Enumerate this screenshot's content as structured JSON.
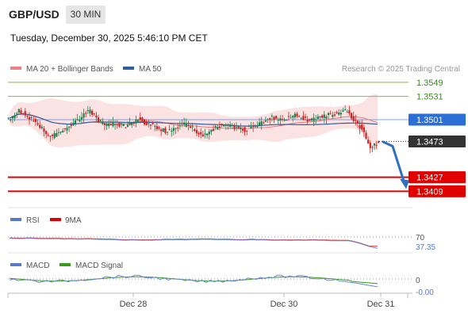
{
  "header": {
    "symbol": "GBP/USD",
    "timeframe": "30 MIN",
    "datetime": "Tuesday, December 30, 2025 5:46:10 PM CET"
  },
  "legend": {
    "ma20": "MA 20 + Bollinger Bands",
    "ma50": "MA 50",
    "credit": "Research © 2025 Trading Central",
    "colors": {
      "ma20": "#f08080",
      "ma50": "#2f5f9f",
      "candle_up": "#1f7f4f",
      "candle_down": "#cc2222"
    }
  },
  "rsi_panel": {
    "label": "RSI",
    "ma_label": "9MA",
    "level": "70",
    "value": "37.35"
  },
  "macd_panel": {
    "label": "MACD",
    "signal_label": "MACD Signal",
    "zero": "0",
    "value": "-0.00"
  },
  "chart_data": {
    "type": "candlestick",
    "timeframe": "30 MIN",
    "x_ticks": [
      "Dec 28",
      "Dec 30",
      "Dec 31"
    ],
    "price_axis": {
      "ylim": [
        1.339,
        1.3555
      ]
    },
    "levels": [
      {
        "label": "1.3549",
        "value": 1.3549,
        "color": "#7cbf3f",
        "kind": "resistance"
      },
      {
        "label": "1.3531",
        "value": 1.3531,
        "color": "#7cbf3f",
        "kind": "resistance"
      },
      {
        "label": "1.3501",
        "value": 1.3501,
        "color": "#2a6fd6",
        "kind": "ma50"
      },
      {
        "label": "1.3473",
        "value": 1.3473,
        "color": "#333333",
        "kind": "last"
      },
      {
        "label": "1.3427",
        "value": 1.3427,
        "color": "#e00000",
        "kind": "target"
      },
      {
        "label": "1.3409",
        "value": 1.3409,
        "color": "#e00000",
        "kind": "target"
      }
    ],
    "forecast": {
      "from": 1.3473,
      "to": 1.3419
    },
    "close_series": [
      1.3503,
      1.3508,
      1.3512,
      1.3511,
      1.3506,
      1.3502,
      1.3497,
      1.3492,
      1.3486,
      1.3481,
      1.3479,
      1.3484,
      1.3487,
      1.349,
      1.3492,
      1.3496,
      1.35,
      1.3505,
      1.351,
      1.3512,
      1.3508,
      1.3501,
      1.3496,
      1.3493,
      1.3495,
      1.3498,
      1.3495,
      1.3493,
      1.3494,
      1.3497,
      1.3501,
      1.3502,
      1.3498,
      1.3495,
      1.3493,
      1.349,
      1.3488,
      1.3487,
      1.3486,
      1.3489,
      1.3492,
      1.3495,
      1.3494,
      1.3491,
      1.3488,
      1.3484,
      1.3482,
      1.3485,
      1.3488,
      1.349,
      1.3493,
      1.3495,
      1.3493,
      1.3492,
      1.349,
      1.3489,
      1.3488,
      1.349,
      1.3493,
      1.3495,
      1.3497,
      1.35,
      1.3503,
      1.3504,
      1.3502,
      1.3501,
      1.3503,
      1.3505,
      1.3506,
      1.3503,
      1.3503,
      1.3501,
      1.35,
      1.3502,
      1.3504,
      1.3505,
      1.3507,
      1.3508,
      1.3509,
      1.3511,
      1.3513,
      1.3509,
      1.3501,
      1.3496,
      1.3489,
      1.3478,
      1.3465,
      1.3468,
      1.3473
    ],
    "rsi": {
      "level": 70,
      "last": 37.35
    },
    "macd": {
      "zero": 0,
      "last": -0.0
    }
  }
}
